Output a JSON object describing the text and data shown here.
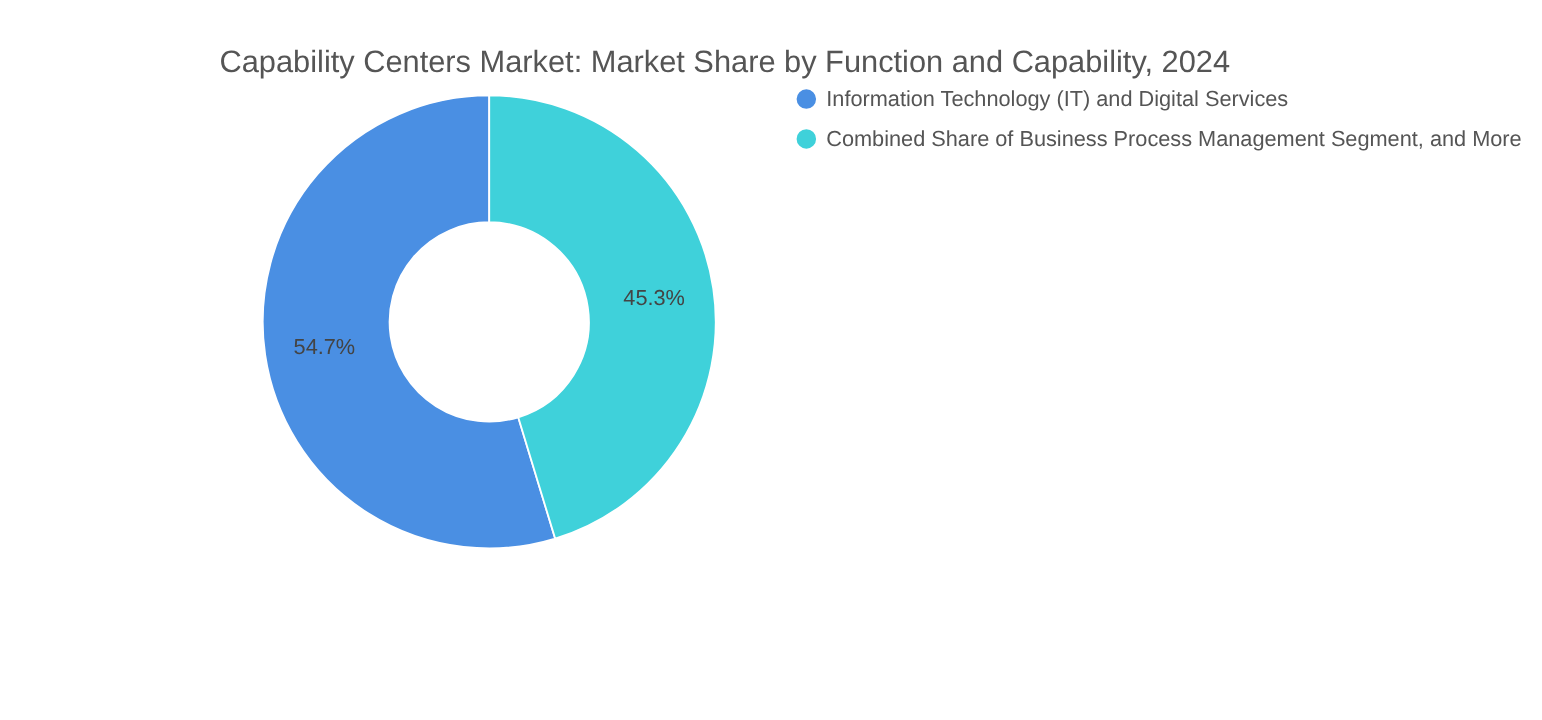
{
  "chart_data": {
    "type": "donut",
    "title": "Capability Centers Market: Market Share by Function and Capability, 2024",
    "categories": [
      "Information Technology (IT) and Digital Services",
      "Combined Share of Business Process Management Segment, and More"
    ],
    "values": [
      54.7,
      45.3
    ],
    "colors": [
      "#4a8fe3",
      "#3fd1da"
    ],
    "value_labels": [
      "54.7%",
      "45.3%"
    ],
    "legend": "right"
  }
}
